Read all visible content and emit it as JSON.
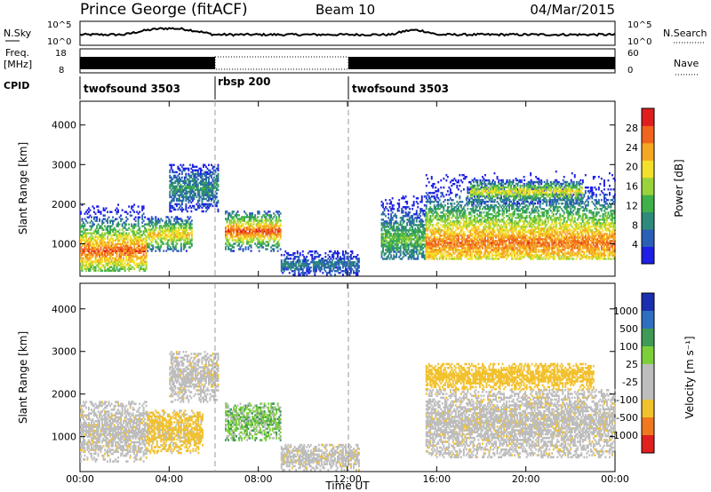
{
  "header": {
    "station": "Prince George (fitACF)",
    "beam": "Beam 10",
    "date": "04/Mar/2015"
  },
  "top_panels": {
    "nsky_label": "N.Sky",
    "nsky_ticks": [
      "10^5",
      "10^0"
    ],
    "nsearch_label": "N.Search",
    "nsearch_ticks": [
      "10^5",
      "10^0"
    ],
    "freq_label_1": "Freq.",
    "freq_label_2": "[MHz]",
    "freq_ticks": [
      "18",
      "8"
    ],
    "nave_label": "Nave",
    "nave_ticks": [
      "60",
      "0"
    ],
    "cpid_label": "CPID",
    "cpid_segments": [
      {
        "label": "twofsound 3503",
        "start_hour": 0,
        "end_hour": 6
      },
      {
        "label": "rbsp 200",
        "start_hour": 6,
        "end_hour": 12
      },
      {
        "label": "twofsound 3503",
        "start_hour": 12,
        "end_hour": 24
      }
    ]
  },
  "colors": {
    "power_scale": [
      "#1e1ee6",
      "#2a5fb8",
      "#2e8a7a",
      "#3fb04a",
      "#9ad23a",
      "#f2e02a",
      "#f5a623",
      "#f0641e",
      "#e01e1e"
    ],
    "velocity_scale": [
      "#1a2fb0",
      "#2f6fbf",
      "#3f9a55",
      "#7ccf3a",
      "#bdbdbd",
      "#bdbdbd",
      "#f2c12e",
      "#f0781e",
      "#e0201e"
    ],
    "ground_scatter": "#bdbdbd"
  },
  "chart_data": [
    {
      "type": "heatmap",
      "name": "power",
      "ylabel": "Slant Range [km]",
      "xlabel": "",
      "x_ticks": [
        "00:00",
        "04:00",
        "08:00",
        "12:00",
        "16:00",
        "20:00",
        "00:00"
      ],
      "x_range_hours": [
        0,
        24
      ],
      "y_ticks": [
        "1000",
        "2000",
        "3000",
        "4000"
      ],
      "ylim": [
        180,
        4600
      ],
      "colorbar_label": "Power [dB]",
      "colorbar_ticks": [
        "4",
        "8",
        "12",
        "16",
        "20",
        "24",
        "28"
      ],
      "colorbar_range": [
        0,
        32
      ],
      "echo_regions": [
        {
          "start_hour": 0.0,
          "end_hour": 3.0,
          "range_km": [
            300,
            2000
          ],
          "peak_km": 800,
          "peak_db": 27
        },
        {
          "start_hour": 3.0,
          "end_hour": 5.0,
          "range_km": [
            800,
            1700
          ],
          "peak_km": 1200,
          "peak_db": 22
        },
        {
          "start_hour": 4.0,
          "end_hour": 6.2,
          "range_km": [
            1800,
            3000
          ],
          "peak_km": 2400,
          "peak_db": 10
        },
        {
          "start_hour": 6.5,
          "end_hour": 9.0,
          "range_km": [
            800,
            1800
          ],
          "peak_km": 1300,
          "peak_db": 28
        },
        {
          "start_hour": 9.0,
          "end_hour": 12.5,
          "range_km": [
            200,
            800
          ],
          "peak_km": 450,
          "peak_db": 8
        },
        {
          "start_hour": 13.5,
          "end_hour": 15.5,
          "range_km": [
            600,
            2200
          ],
          "peak_km": 1100,
          "peak_db": 14
        },
        {
          "start_hour": 15.5,
          "end_hour": 24.0,
          "range_km": [
            600,
            3000
          ],
          "peak_km": 1000,
          "peak_db": 26
        },
        {
          "start_hour": 17.5,
          "end_hour": 22.5,
          "range_km": [
            2000,
            2600
          ],
          "peak_km": 2300,
          "peak_db": 20
        }
      ]
    },
    {
      "type": "heatmap",
      "name": "velocity",
      "ylabel": "Slant Range [km]",
      "xlabel": "Time UT",
      "x_ticks": [
        "00:00",
        "04:00",
        "08:00",
        "12:00",
        "16:00",
        "20:00",
        "00:00"
      ],
      "x_range_hours": [
        0,
        24
      ],
      "y_ticks": [
        "1000",
        "2000",
        "3000",
        "4000"
      ],
      "ylim": [
        180,
        4600
      ],
      "colorbar_label": "Velocity [m s⁻¹]",
      "colorbar_ticks": [
        "1000",
        "500",
        "100",
        "25",
        "-25",
        "-100",
        "-500",
        "-1000"
      ],
      "echo_regions": [
        {
          "start_hour": 0.0,
          "end_hour": 3.0,
          "range_km": [
            400,
            1800
          ],
          "velocity": "ground"
        },
        {
          "start_hour": 3.0,
          "end_hour": 5.5,
          "range_km": [
            600,
            1600
          ],
          "velocity": -150
        },
        {
          "start_hour": 4.0,
          "end_hour": 6.2,
          "range_km": [
            1800,
            3000
          ],
          "velocity": "ground"
        },
        {
          "start_hour": 6.5,
          "end_hour": 9.0,
          "range_km": [
            900,
            1800
          ],
          "velocity": 60
        },
        {
          "start_hour": 9.0,
          "end_hour": 12.5,
          "range_km": [
            200,
            800
          ],
          "velocity": "ground"
        },
        {
          "start_hour": 15.5,
          "end_hour": 24.0,
          "range_km": [
            500,
            2100
          ],
          "velocity": "ground"
        },
        {
          "start_hour": 15.5,
          "end_hour": 23.0,
          "range_km": [
            2100,
            2700
          ],
          "velocity": -200
        }
      ]
    }
  ]
}
